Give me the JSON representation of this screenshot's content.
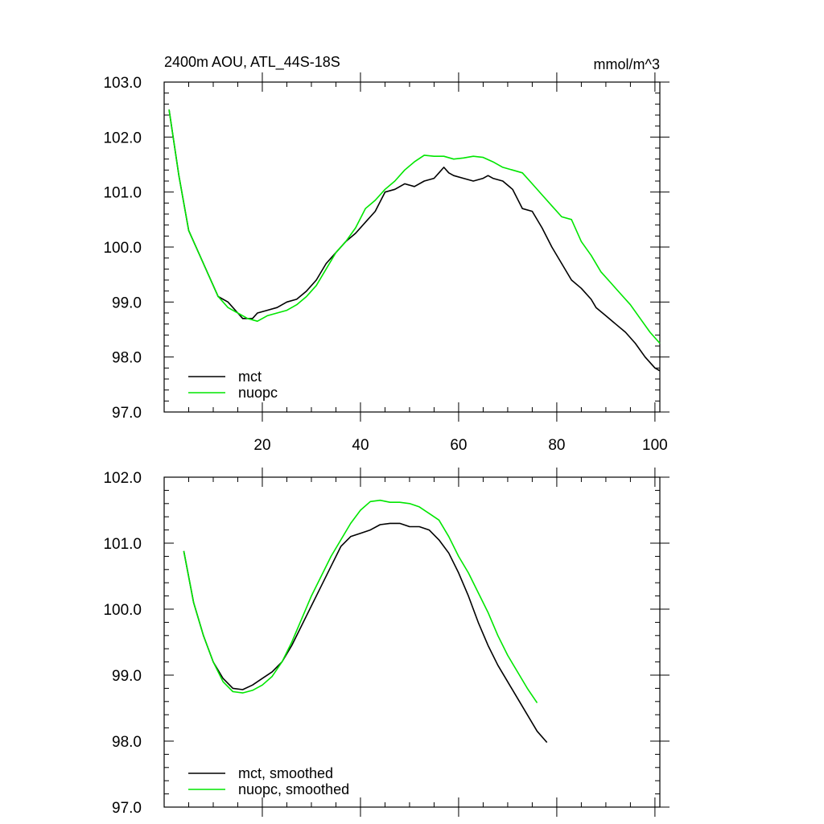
{
  "chart_data": [
    {
      "type": "line",
      "title": "2400m AOU, ATL_44S-18S",
      "units": "mmol/m^3",
      "xlim": [
        0,
        101
      ],
      "ylim": [
        97.0,
        103.0
      ],
      "xticks": [
        20,
        40,
        60,
        80,
        100
      ],
      "xtick_labels": [
        "20",
        "40",
        "60",
        "80",
        "100"
      ],
      "yticks": [
        97.0,
        98.0,
        99.0,
        100.0,
        101.0,
        102.0,
        103.0
      ],
      "ytick_labels": [
        "97.0",
        "98.0",
        "99.0",
        "100.0",
        "101.0",
        "102.0",
        "103.0"
      ],
      "legend": "bottom-left",
      "series": [
        {
          "name": "mct",
          "color": "#000000",
          "points": [
            [
              1,
              102.5
            ],
            [
              3,
              101.3
            ],
            [
              5,
              100.3
            ],
            [
              7,
              99.9
            ],
            [
              9,
              99.5
            ],
            [
              11,
              99.1
            ],
            [
              13,
              99.0
            ],
            [
              15,
              98.8
            ],
            [
              16,
              98.7
            ],
            [
              17,
              98.7
            ],
            [
              18,
              98.7
            ],
            [
              19,
              98.8
            ],
            [
              21,
              98.85
            ],
            [
              23,
              98.9
            ],
            [
              25,
              99.0
            ],
            [
              27,
              99.05
            ],
            [
              29,
              99.2
            ],
            [
              31,
              99.4
            ],
            [
              33,
              99.7
            ],
            [
              35,
              99.9
            ],
            [
              37,
              100.1
            ],
            [
              39,
              100.25
            ],
            [
              41,
              100.45
            ],
            [
              43,
              100.65
            ],
            [
              45,
              101.0
            ],
            [
              47,
              101.05
            ],
            [
              49,
              101.15
            ],
            [
              51,
              101.1
            ],
            [
              53,
              101.2
            ],
            [
              55,
              101.25
            ],
            [
              56,
              101.35
            ],
            [
              57,
              101.45
            ],
            [
              58,
              101.35
            ],
            [
              59,
              101.3
            ],
            [
              61,
              101.25
            ],
            [
              63,
              101.2
            ],
            [
              65,
              101.25
            ],
            [
              66,
              101.3
            ],
            [
              67,
              101.25
            ],
            [
              69,
              101.2
            ],
            [
              71,
              101.05
            ],
            [
              73,
              100.7
            ],
            [
              75,
              100.65
            ],
            [
              77,
              100.35
            ],
            [
              79,
              100.0
            ],
            [
              81,
              99.7
            ],
            [
              83,
              99.4
            ],
            [
              85,
              99.25
            ],
            [
              87,
              99.05
            ],
            [
              88,
              98.9
            ],
            [
              90,
              98.75
            ],
            [
              92,
              98.6
            ],
            [
              94,
              98.45
            ],
            [
              96,
              98.25
            ],
            [
              98,
              98.0
            ],
            [
              100,
              97.8
            ],
            [
              101,
              97.75
            ]
          ]
        },
        {
          "name": "nuopc",
          "color": "#00e600",
          "points": [
            [
              1,
              102.5
            ],
            [
              3,
              101.3
            ],
            [
              5,
              100.3
            ],
            [
              7,
              99.9
            ],
            [
              9,
              99.5
            ],
            [
              11,
              99.1
            ],
            [
              13,
              98.9
            ],
            [
              15,
              98.8
            ],
            [
              17,
              98.7
            ],
            [
              19,
              98.65
            ],
            [
              21,
              98.75
            ],
            [
              23,
              98.8
            ],
            [
              25,
              98.85
            ],
            [
              27,
              98.95
            ],
            [
              29,
              99.1
            ],
            [
              31,
              99.3
            ],
            [
              33,
              99.6
            ],
            [
              35,
              99.9
            ],
            [
              37,
              100.1
            ],
            [
              39,
              100.35
            ],
            [
              41,
              100.7
            ],
            [
              43,
              100.85
            ],
            [
              45,
              101.05
            ],
            [
              47,
              101.2
            ],
            [
              49,
              101.4
            ],
            [
              51,
              101.55
            ],
            [
              53,
              101.67
            ],
            [
              55,
              101.65
            ],
            [
              57,
              101.65
            ],
            [
              59,
              101.6
            ],
            [
              61,
              101.62
            ],
            [
              63,
              101.65
            ],
            [
              65,
              101.63
            ],
            [
              67,
              101.55
            ],
            [
              69,
              101.45
            ],
            [
              71,
              101.4
            ],
            [
              73,
              101.35
            ],
            [
              75,
              101.15
            ],
            [
              77,
              100.95
            ],
            [
              79,
              100.75
            ],
            [
              81,
              100.55
            ],
            [
              83,
              100.5
            ],
            [
              85,
              100.1
            ],
            [
              87,
              99.85
            ],
            [
              89,
              99.55
            ],
            [
              91,
              99.35
            ],
            [
              93,
              99.15
            ],
            [
              95,
              98.95
            ],
            [
              97,
              98.7
            ],
            [
              99,
              98.45
            ],
            [
              101,
              98.25
            ]
          ]
        }
      ]
    },
    {
      "type": "line",
      "title": "",
      "xlim": [
        0,
        101
      ],
      "ylim": [
        97.0,
        102.0
      ],
      "xticks": [
        20,
        40,
        60,
        80,
        100
      ],
      "xtick_labels": [],
      "yticks": [
        97.0,
        98.0,
        99.0,
        100.0,
        101.0,
        102.0
      ],
      "ytick_labels": [
        "97.0",
        "98.0",
        "99.0",
        "100.0",
        "101.0",
        "102.0"
      ],
      "legend": "bottom-left",
      "series": [
        {
          "name": "mct, smoothed",
          "color": "#000000",
          "points": [
            [
              4,
              100.88
            ],
            [
              6,
              100.1
            ],
            [
              8,
              99.6
            ],
            [
              10,
              99.2
            ],
            [
              12,
              98.95
            ],
            [
              14,
              98.8
            ],
            [
              16,
              98.78
            ],
            [
              18,
              98.85
            ],
            [
              20,
              98.95
            ],
            [
              22,
              99.05
            ],
            [
              24,
              99.2
            ],
            [
              26,
              99.45
            ],
            [
              28,
              99.75
            ],
            [
              30,
              100.05
            ],
            [
              32,
              100.35
            ],
            [
              34,
              100.65
            ],
            [
              36,
              100.95
            ],
            [
              38,
              101.1
            ],
            [
              40,
              101.15
            ],
            [
              42,
              101.2
            ],
            [
              44,
              101.28
            ],
            [
              46,
              101.3
            ],
            [
              48,
              101.3
            ],
            [
              50,
              101.25
            ],
            [
              52,
              101.25
            ],
            [
              54,
              101.2
            ],
            [
              56,
              101.05
            ],
            [
              58,
              100.85
            ],
            [
              60,
              100.55
            ],
            [
              62,
              100.2
            ],
            [
              64,
              99.8
            ],
            [
              66,
              99.45
            ],
            [
              68,
              99.15
            ],
            [
              70,
              98.9
            ],
            [
              72,
              98.65
            ],
            [
              74,
              98.4
            ],
            [
              76,
              98.15
            ],
            [
              78,
              97.98
            ]
          ]
        },
        {
          "name": "nuopc, smoothed",
          "color": "#00e600",
          "points": [
            [
              4,
              100.88
            ],
            [
              6,
              100.1
            ],
            [
              8,
              99.6
            ],
            [
              10,
              99.2
            ],
            [
              12,
              98.9
            ],
            [
              14,
              98.75
            ],
            [
              16,
              98.73
            ],
            [
              18,
              98.77
            ],
            [
              20,
              98.85
            ],
            [
              22,
              98.98
            ],
            [
              24,
              99.2
            ],
            [
              26,
              99.5
            ],
            [
              28,
              99.85
            ],
            [
              30,
              100.2
            ],
            [
              32,
              100.5
            ],
            [
              34,
              100.8
            ],
            [
              36,
              101.05
            ],
            [
              38,
              101.3
            ],
            [
              40,
              101.5
            ],
            [
              42,
              101.63
            ],
            [
              44,
              101.65
            ],
            [
              46,
              101.62
            ],
            [
              48,
              101.62
            ],
            [
              50,
              101.6
            ],
            [
              52,
              101.55
            ],
            [
              54,
              101.45
            ],
            [
              56,
              101.35
            ],
            [
              58,
              101.1
            ],
            [
              60,
              100.8
            ],
            [
              62,
              100.55
            ],
            [
              64,
              100.25
            ],
            [
              66,
              99.95
            ],
            [
              68,
              99.6
            ],
            [
              70,
              99.3
            ],
            [
              72,
              99.05
            ],
            [
              74,
              98.8
            ],
            [
              76,
              98.58
            ]
          ]
        }
      ]
    }
  ]
}
